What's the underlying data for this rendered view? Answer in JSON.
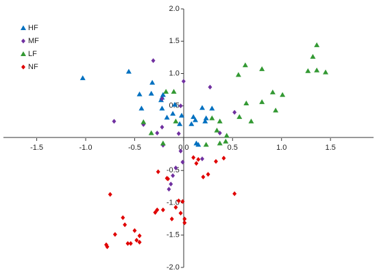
{
  "chart_data": {
    "type": "scatter",
    "xlim": [
      -1.84,
      1.94
    ],
    "ylim": [
      -2,
      2
    ],
    "xticks": [
      -1.5,
      {
        "value": -1,
        "label": "-1.0"
      },
      -0.5,
      {
        "value": 0,
        "label": "0.0"
      },
      0.5,
      {
        "value": 1,
        "label": "1.0"
      },
      1.5
    ],
    "yticks": [
      {
        "value": 2,
        "label": "2.0"
      },
      1.5,
      {
        "value": 1,
        "label": "1.0"
      },
      0.5,
      -0.5,
      {
        "value": -1,
        "label": "-1.0"
      },
      -1.5,
      {
        "value": -2,
        "label": "-2.0"
      }
    ],
    "legend": "top-left",
    "series": [
      {
        "name": "HF",
        "color": "#0070c0",
        "marker": "triangle",
        "x": [
          -1.03,
          -0.56,
          -0.45,
          -0.32,
          -0.43,
          -0.33,
          -0.22,
          -0.23,
          -0.21,
          -0.22,
          -0.17,
          -0.09,
          -0.11,
          -0.04,
          -0.02,
          0.08,
          0.1,
          0.12,
          0.19,
          0.22,
          0.29,
          0.15,
          0.23,
          0.13
        ],
        "values": [
          0.93,
          1.03,
          0.68,
          0.86,
          0.46,
          0.69,
          0.63,
          0.59,
          0.67,
          0.46,
          0.32,
          0.52,
          0.38,
          0.22,
          0.35,
          0.22,
          0.33,
          0.28,
          0.47,
          0.26,
          0.46,
          -0.1,
          0.31,
          -0.08
        ]
      },
      {
        "name": "MF",
        "color": "#7030a0",
        "marker": "diamond",
        "x": [
          -0.31,
          -0.71,
          -0.41,
          -0.27,
          -0.22,
          -0.21,
          -0.22,
          0,
          -0.03,
          0.27,
          -0.03,
          -0.01,
          -0.08,
          -0.11,
          -0.13,
          -0.15,
          0.19,
          0.52,
          0.37,
          -0.05
        ],
        "values": [
          1.2,
          0.26,
          0.21,
          0.08,
          0.17,
          -0.11,
          0.61,
          0.88,
          0.5,
          0.79,
          -0.2,
          -0.37,
          -0.46,
          -0.58,
          -0.71,
          -0.79,
          -0.32,
          0.4,
          0.08,
          0.07
        ]
      },
      {
        "name": "LF",
        "color": "#339933",
        "marker": "triangle",
        "x": [
          1.36,
          1.32,
          1.36,
          1.45,
          1.27,
          0.8,
          0.63,
          0.56,
          0.91,
          1.01,
          0.8,
          0.94,
          0.64,
          0.57,
          0.69,
          -0.18,
          -0.1,
          -0.41,
          -0.33,
          -0.21,
          0.29,
          0.34,
          0.37,
          0.43,
          0.44,
          0.37,
          -0.08,
          0.23
        ],
        "values": [
          1.44,
          1.26,
          1.05,
          1.02,
          1.04,
          1.07,
          1.13,
          0.98,
          0.71,
          0.67,
          0.56,
          0.43,
          0.54,
          0.33,
          0.26,
          0.72,
          0.72,
          0.25,
          0.08,
          -0.08,
          0.31,
          0.12,
          0.26,
          -0.05,
          0.04,
          -0.08,
          0.26,
          -0.1
        ]
      },
      {
        "name": "NF",
        "color": "#e00000",
        "marker": "diamond",
        "x": [
          -0.75,
          -0.78,
          -0.79,
          -0.7,
          -0.62,
          -0.6,
          -0.57,
          -0.54,
          -0.48,
          -0.45,
          -0.45,
          -0.5,
          -0.29,
          -0.27,
          -0.21,
          -0.26,
          -0.17,
          -0.16,
          -0.12,
          -0.08,
          -0.05,
          -0.01,
          0.01,
          0.01,
          -0.03,
          0.1,
          0.15,
          0.13,
          0.2,
          0.25,
          0.33,
          0.41,
          0.52
        ],
        "values": [
          -0.87,
          -1.68,
          -1.65,
          -1.49,
          -1.23,
          -1.34,
          -1.63,
          -1.63,
          -1.58,
          -1.51,
          -1.61,
          -1.43,
          -1.15,
          -1.11,
          -1.11,
          -0.52,
          -0.62,
          -0.63,
          -1.25,
          -1.07,
          -0.97,
          -0.98,
          -1.25,
          -1.31,
          -1.16,
          -0.3,
          -0.33,
          -0.39,
          -0.6,
          -0.56,
          -0.36,
          -0.31,
          -0.86
        ]
      }
    ]
  }
}
